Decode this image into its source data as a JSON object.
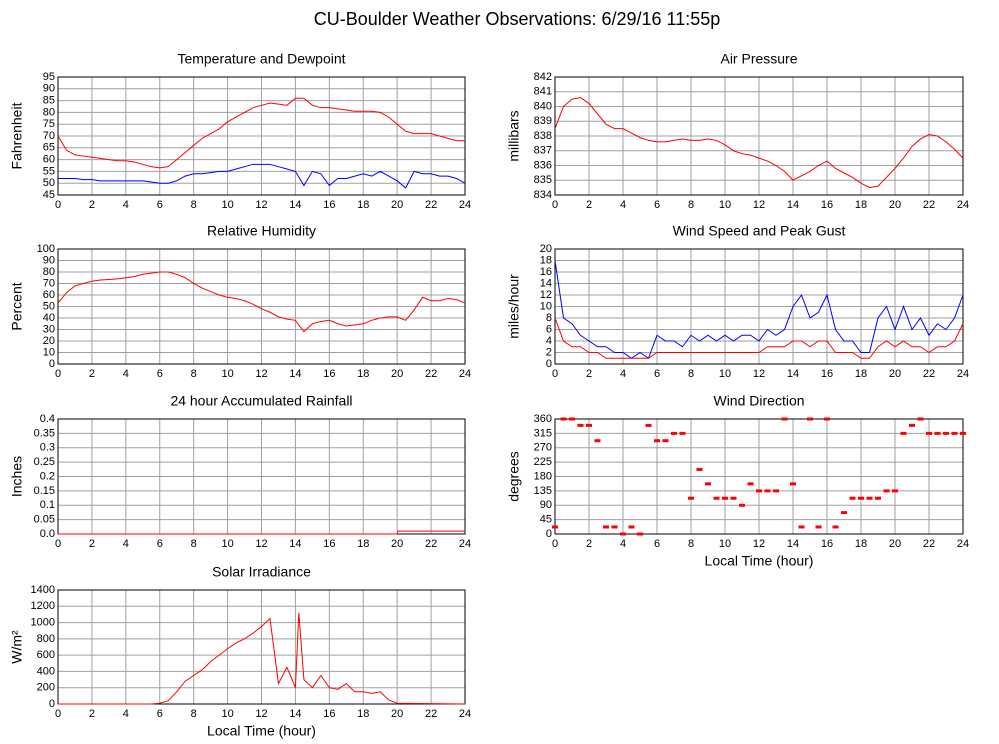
{
  "title": "CU-Boulder Weather Observations: 6/29/16 11:55p",
  "chart_data": [
    {
      "type": "line",
      "title": "Temperature and Dewpoint",
      "ylabel": "Fahrenheit",
      "x": [
        0,
        0.5,
        1,
        1.5,
        2,
        2.5,
        3,
        3.5,
        4,
        4.5,
        5,
        5.5,
        6,
        6.5,
        7,
        7.5,
        8,
        8.5,
        9,
        9.5,
        10,
        10.5,
        11,
        11.5,
        12,
        12.5,
        13,
        13.5,
        14,
        14.5,
        15,
        15.5,
        16,
        16.5,
        17,
        17.5,
        18,
        18.5,
        19,
        19.5,
        20,
        20.5,
        21,
        21.5,
        22,
        22.5,
        23,
        23.5,
        24
      ],
      "series": [
        {
          "color": "#ff0000",
          "values": [
            70,
            64,
            62,
            61.5,
            61,
            60.5,
            60,
            59.5,
            59.5,
            59,
            58,
            57,
            56.5,
            57,
            60,
            63,
            66,
            69,
            71,
            73,
            76,
            78,
            80,
            82,
            83,
            84,
            83.5,
            83,
            86,
            86,
            83,
            82,
            82,
            81.5,
            81,
            80.5,
            80.5,
            80.5,
            80,
            78,
            75,
            72,
            71,
            71,
            71,
            70,
            69,
            68,
            68
          ]
        },
        {
          "color": "#0000ff",
          "values": [
            52,
            52,
            52,
            51.5,
            51.5,
            51,
            51,
            51,
            51,
            51,
            51,
            50.5,
            50,
            50,
            51,
            53,
            54,
            54,
            54.5,
            55,
            55,
            56,
            57,
            58,
            58,
            58,
            57,
            56,
            55,
            49,
            55,
            54,
            49,
            52,
            52,
            53,
            54,
            53,
            55,
            53,
            51,
            48,
            55,
            54,
            54,
            53,
            53,
            52,
            50
          ]
        }
      ],
      "xlim": [
        0,
        24
      ],
      "ylim": [
        45,
        95
      ],
      "xticks": [
        0,
        2,
        4,
        6,
        8,
        10,
        12,
        14,
        16,
        18,
        20,
        22,
        24
      ],
      "yticks": [
        45,
        50,
        55,
        60,
        65,
        70,
        75,
        80,
        85,
        90,
        95
      ],
      "grid": true
    },
    {
      "type": "line",
      "title": "Air Pressure",
      "ylabel": "millibars",
      "x": [
        0,
        0.5,
        1,
        1.5,
        2,
        2.5,
        3,
        3.5,
        4,
        4.5,
        5,
        5.5,
        6,
        6.5,
        7,
        7.5,
        8,
        8.5,
        9,
        9.5,
        10,
        10.5,
        11,
        11.5,
        12,
        12.5,
        13,
        13.5,
        14,
        14.5,
        15,
        15.5,
        16,
        16.5,
        17,
        17.5,
        18,
        18.5,
        19,
        19.5,
        20,
        20.5,
        21,
        21.5,
        22,
        22.5,
        23,
        23.5,
        24
      ],
      "series": [
        {
          "color": "#ff0000",
          "values": [
            838.5,
            840,
            840.5,
            840.6,
            840.2,
            839.5,
            838.8,
            838.5,
            838.5,
            838.2,
            837.9,
            837.7,
            837.6,
            837.6,
            837.7,
            837.8,
            837.7,
            837.7,
            837.8,
            837.7,
            837.4,
            837,
            836.8,
            836.7,
            836.5,
            836.3,
            836,
            835.6,
            835,
            835.3,
            835.6,
            836,
            836.3,
            835.8,
            835.5,
            835.2,
            834.8,
            834.5,
            834.6,
            835.2,
            835.8,
            836.5,
            837.3,
            837.8,
            838.1,
            838,
            837.6,
            837.1,
            836.5
          ]
        }
      ],
      "xlim": [
        0,
        24
      ],
      "ylim": [
        834,
        842
      ],
      "xticks": [
        0,
        2,
        4,
        6,
        8,
        10,
        12,
        14,
        16,
        18,
        20,
        22,
        24
      ],
      "yticks": [
        834,
        835,
        836,
        837,
        838,
        839,
        840,
        841,
        842
      ],
      "grid": true
    },
    {
      "type": "line",
      "title": "Relative Humidity",
      "ylabel": "Percent",
      "x": [
        0,
        0.5,
        1,
        1.5,
        2,
        2.5,
        3,
        3.5,
        4,
        4.5,
        5,
        5.5,
        6,
        6.5,
        7,
        7.5,
        8,
        8.5,
        9,
        9.5,
        10,
        10.5,
        11,
        11.5,
        12,
        12.5,
        13,
        13.5,
        14,
        14.5,
        15,
        15.5,
        16,
        16.5,
        17,
        17.5,
        18,
        18.5,
        19,
        19.5,
        20,
        20.5,
        21,
        21.5,
        22,
        22.5,
        23,
        23.5,
        24
      ],
      "series": [
        {
          "color": "#ff0000",
          "values": [
            53,
            62,
            68,
            70,
            72,
            73,
            73.5,
            74,
            75,
            76,
            78,
            79,
            80,
            80,
            78,
            75,
            70,
            66,
            63,
            60,
            58,
            57,
            55,
            52,
            48,
            45,
            41,
            39,
            38,
            28,
            35,
            37,
            38,
            35,
            33,
            34,
            35,
            38,
            40,
            41,
            41,
            38,
            47,
            58,
            55,
            55,
            57,
            56,
            53
          ]
        }
      ],
      "xlim": [
        0,
        24
      ],
      "ylim": [
        0,
        100
      ],
      "xticks": [
        0,
        2,
        4,
        6,
        8,
        10,
        12,
        14,
        16,
        18,
        20,
        22,
        24
      ],
      "yticks": [
        0,
        10,
        20,
        30,
        40,
        50,
        60,
        70,
        80,
        90,
        100
      ],
      "grid": true
    },
    {
      "type": "line",
      "title": "Wind Speed and Peak Gust",
      "ylabel": "miles/hour",
      "x": [
        0,
        0.5,
        1,
        1.5,
        2,
        2.5,
        3,
        3.5,
        4,
        4.5,
        5,
        5.5,
        6,
        6.5,
        7,
        7.5,
        8,
        8.5,
        9,
        9.5,
        10,
        10.5,
        11,
        11.5,
        12,
        12.5,
        13,
        13.5,
        14,
        14.5,
        15,
        15.5,
        16,
        16.5,
        17,
        17.5,
        18,
        18.5,
        19,
        19.5,
        20,
        20.5,
        21,
        21.5,
        22,
        22.5,
        23,
        23.5,
        24
      ],
      "series": [
        {
          "color": "#0000ff",
          "values": [
            18,
            8,
            7,
            5,
            4,
            3,
            3,
            2,
            2,
            1,
            2,
            1,
            5,
            4,
            4,
            3,
            5,
            4,
            5,
            4,
            5,
            4,
            5,
            5,
            4,
            6,
            5,
            6,
            10,
            12,
            8,
            9,
            12,
            6,
            4,
            4,
            2,
            2,
            8,
            10,
            6,
            10,
            6,
            8,
            5,
            7,
            6,
            8,
            12
          ]
        },
        {
          "color": "#ff0000",
          "values": [
            8,
            4,
            3,
            3,
            2,
            2,
            1,
            1,
            1,
            1,
            1,
            1,
            2,
            2,
            2,
            2,
            2,
            2,
            2,
            2,
            2,
            2,
            2,
            2,
            2,
            3,
            3,
            3,
            4,
            4,
            3,
            4,
            4,
            2,
            2,
            2,
            1,
            1,
            3,
            4,
            3,
            4,
            3,
            3,
            2,
            3,
            3,
            4,
            7
          ]
        }
      ],
      "xlim": [
        0,
        24
      ],
      "ylim": [
        0,
        20
      ],
      "xticks": [
        0,
        2,
        4,
        6,
        8,
        10,
        12,
        14,
        16,
        18,
        20,
        22,
        24
      ],
      "yticks": [
        0,
        2,
        4,
        6,
        8,
        10,
        12,
        14,
        16,
        18,
        20
      ],
      "grid": true
    },
    {
      "type": "line",
      "title": "24 hour Accumulated Rainfall",
      "ylabel": "Inches",
      "x": [
        0,
        20,
        20.05,
        24
      ],
      "series": [
        {
          "color": "#ff0000",
          "values": [
            0,
            0,
            0.01,
            0.01
          ]
        }
      ],
      "xlim": [
        0,
        24
      ],
      "ylim": [
        0,
        0.4
      ],
      "xticks": [
        0,
        2,
        4,
        6,
        8,
        10,
        12,
        14,
        16,
        18,
        20,
        22,
        24
      ],
      "yticks": [
        {
          "value": 0,
          "label": "0.0"
        },
        0.05,
        0.1,
        0.15,
        0.2,
        0.25,
        0.3,
        0.35,
        0.4
      ],
      "grid": true
    },
    {
      "type": "scatter",
      "title": "Wind Direction",
      "ylabel": "degrees",
      "xlabel": "Local Time (hour)",
      "x": [
        0,
        0.5,
        1,
        1.5,
        2,
        2.5,
        3,
        3.5,
        4,
        4.5,
        5,
        5.5,
        6,
        6.5,
        7,
        7.5,
        8,
        8.5,
        9,
        9.5,
        10,
        10.5,
        11,
        11.5,
        12,
        12.5,
        13,
        13.5,
        14,
        14.5,
        15,
        15.5,
        16,
        16.5,
        17,
        17.5,
        18,
        18.5,
        19,
        19.5,
        20,
        20.5,
        21,
        21.5,
        22,
        22.5,
        23,
        23.5,
        24
      ],
      "series": [
        {
          "color": "#ff0000",
          "values": [
            22,
            360,
            360,
            340,
            340,
            292,
            22,
            22,
            0,
            22,
            0,
            340,
            292,
            292,
            315,
            315,
            112,
            202,
            157,
            112,
            112,
            112,
            90,
            157,
            135,
            135,
            135,
            360,
            157,
            22,
            360,
            22,
            360,
            22,
            67,
            112,
            112,
            112,
            112,
            135,
            135,
            315,
            340,
            360,
            315,
            315,
            315,
            315,
            315
          ]
        }
      ],
      "xlim": [
        0,
        24
      ],
      "ylim": [
        0,
        360
      ],
      "xticks": [
        0,
        2,
        4,
        6,
        8,
        10,
        12,
        14,
        16,
        18,
        20,
        22,
        24
      ],
      "yticks": [
        0,
        45,
        90,
        135,
        180,
        225,
        270,
        315,
        360
      ],
      "grid": true
    },
    {
      "type": "line",
      "title": "Solar Irradiance",
      "ylabel": "W/m²",
      "xlabel": "Local Time (hour)",
      "x": [
        0,
        5.5,
        6,
        6.5,
        7,
        7.5,
        8,
        8.5,
        9,
        9.5,
        10,
        10.5,
        11,
        11.5,
        12,
        12.5,
        13,
        13.5,
        14,
        14.2,
        14.5,
        15,
        15.5,
        16,
        16.5,
        17,
        17.5,
        18,
        18.5,
        19,
        19.5,
        20,
        24
      ],
      "series": [
        {
          "color": "#ff0000",
          "values": [
            0,
            0,
            10,
            40,
            150,
            280,
            350,
            420,
            520,
            600,
            680,
            750,
            800,
            870,
            950,
            1050,
            250,
            450,
            200,
            1120,
            300,
            200,
            350,
            200,
            180,
            250,
            150,
            150,
            130,
            150,
            50,
            10,
            0
          ]
        }
      ],
      "xlim": [
        0,
        24
      ],
      "ylim": [
        0,
        1400
      ],
      "xticks": [
        0,
        2,
        4,
        6,
        8,
        10,
        12,
        14,
        16,
        18,
        20,
        22,
        24
      ],
      "yticks": [
        0,
        200,
        400,
        600,
        800,
        1000,
        1200,
        1400
      ],
      "grid": true
    }
  ]
}
